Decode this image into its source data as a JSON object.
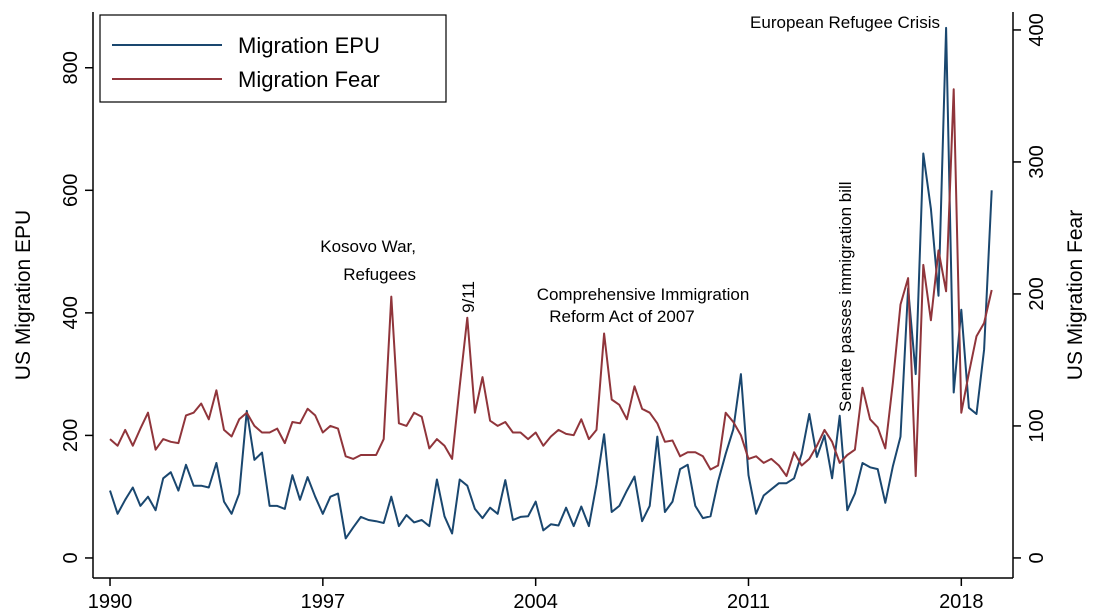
{
  "chart_data": {
    "type": "line",
    "xlim": [
      1989.44,
      2019.7
    ],
    "xticks": [
      1990,
      1997,
      2004,
      2011,
      2018
    ],
    "ylabel": "US Migration EPU",
    "ylim": [
      -32.7,
      891
    ],
    "yticks": [
      0,
      200,
      400,
      600,
      800
    ],
    "y2label": "US Migration Fear",
    "y2lim": [
      -15.2,
      413.6
    ],
    "y2ticks": [
      0,
      100,
      200,
      300,
      400
    ],
    "legend": "top-left",
    "x": [
      1990,
      1990.25,
      1990.5,
      1990.75,
      1991,
      1991.25,
      1991.5,
      1991.75,
      1992,
      1992.25,
      1992.5,
      1992.75,
      1993,
      1993.25,
      1993.5,
      1993.75,
      1994,
      1994.25,
      1994.5,
      1994.75,
      1995,
      1995.25,
      1995.5,
      1995.75,
      1996,
      1996.25,
      1996.5,
      1996.75,
      1997,
      1997.25,
      1997.5,
      1997.75,
      1998,
      1998.25,
      1998.5,
      1998.75,
      1999,
      1999.25,
      1999.5,
      1999.75,
      2000,
      2000.25,
      2000.5,
      2000.75,
      2001,
      2001.25,
      2001.5,
      2001.75,
      2002,
      2002.25,
      2002.5,
      2002.75,
      2003,
      2003.25,
      2003.5,
      2003.75,
      2004,
      2004.25,
      2004.5,
      2004.75,
      2005,
      2005.25,
      2005.5,
      2005.75,
      2006,
      2006.25,
      2006.5,
      2006.75,
      2007,
      2007.25,
      2007.5,
      2007.75,
      2008,
      2008.25,
      2008.5,
      2008.75,
      2009,
      2009.25,
      2009.5,
      2009.75,
      2010,
      2010.25,
      2010.5,
      2010.75,
      2011,
      2011.25,
      2011.5,
      2011.75,
      2012,
      2012.25,
      2012.5,
      2012.75,
      2013,
      2013.25,
      2013.5,
      2013.75,
      2014,
      2014.25,
      2014.5,
      2014.75,
      2015,
      2015.25,
      2015.5,
      2015.75,
      2016,
      2016.25,
      2016.5,
      2016.75,
      2017,
      2017.25,
      2017.5,
      2017.75,
      2018,
      2018.25,
      2018.5,
      2018.75,
      2019
    ],
    "series": [
      {
        "name": "Migration EPU",
        "color": "#1a476f",
        "values": [
          110,
          72,
          95,
          115,
          85,
          100,
          78,
          130,
          140,
          110,
          152,
          118,
          118,
          115,
          155,
          92,
          72,
          105,
          240,
          160,
          172,
          85,
          85,
          80,
          135,
          95,
          132,
          100,
          72,
          100,
          105,
          32,
          50,
          67,
          62,
          60,
          57,
          100,
          52,
          70,
          58,
          62,
          52,
          128,
          68,
          40,
          128,
          118,
          80,
          65,
          82,
          72,
          127,
          62,
          67,
          68,
          92,
          45,
          55,
          53,
          82,
          52,
          84,
          52,
          120,
          202,
          75,
          85,
          110,
          133,
          60,
          85,
          198,
          75,
          92,
          145,
          152,
          85,
          65,
          68,
          125,
          170,
          210,
          300,
          135,
          72,
          102,
          112,
          122,
          122,
          130,
          170,
          235,
          165,
          200,
          130,
          232,
          78,
          105,
          155,
          148,
          145,
          90,
          150,
          198,
          440,
          300,
          660,
          570,
          428,
          865,
          270,
          405,
          245,
          235,
          340,
          600
        ]
      },
      {
        "name": "Migration Fear",
        "color": "#90353b",
        "axis": "y2",
        "values": [
          90,
          85,
          97,
          85,
          98,
          110,
          82,
          90,
          88,
          87,
          108,
          110,
          117,
          105,
          127,
          97,
          92,
          105,
          110,
          100,
          95,
          95,
          98,
          87,
          103,
          102,
          113,
          108,
          95,
          100,
          98,
          77,
          75,
          78,
          78,
          78,
          90,
          198,
          102,
          100,
          110,
          107,
          83,
          90,
          85,
          75,
          130,
          182,
          110,
          137,
          104,
          100,
          103,
          95,
          95,
          90,
          95,
          85,
          92,
          97,
          94,
          93,
          105,
          90,
          97,
          170,
          120,
          116,
          105,
          130,
          113,
          110,
          102,
          88,
          89,
          77,
          80,
          80,
          77,
          67,
          70,
          110,
          103,
          93,
          75,
          77,
          72,
          75,
          70,
          62,
          80,
          70,
          75,
          85,
          97,
          88,
          72,
          78,
          82,
          129,
          105,
          99,
          83,
          133,
          192,
          212,
          62,
          222,
          180,
          233,
          202,
          355,
          110,
          140,
          168,
          178,
          203
        ]
      }
    ],
    "annotations": [
      [
        "Kosovo War,",
        "Refugees"
      ],
      [
        "9/11"
      ],
      [
        "Comprehensive Immigration",
        "Reform Act of 2007"
      ],
      [
        "Senate passes immigration bill"
      ],
      [
        "European Refugee Crisis"
      ]
    ]
  }
}
